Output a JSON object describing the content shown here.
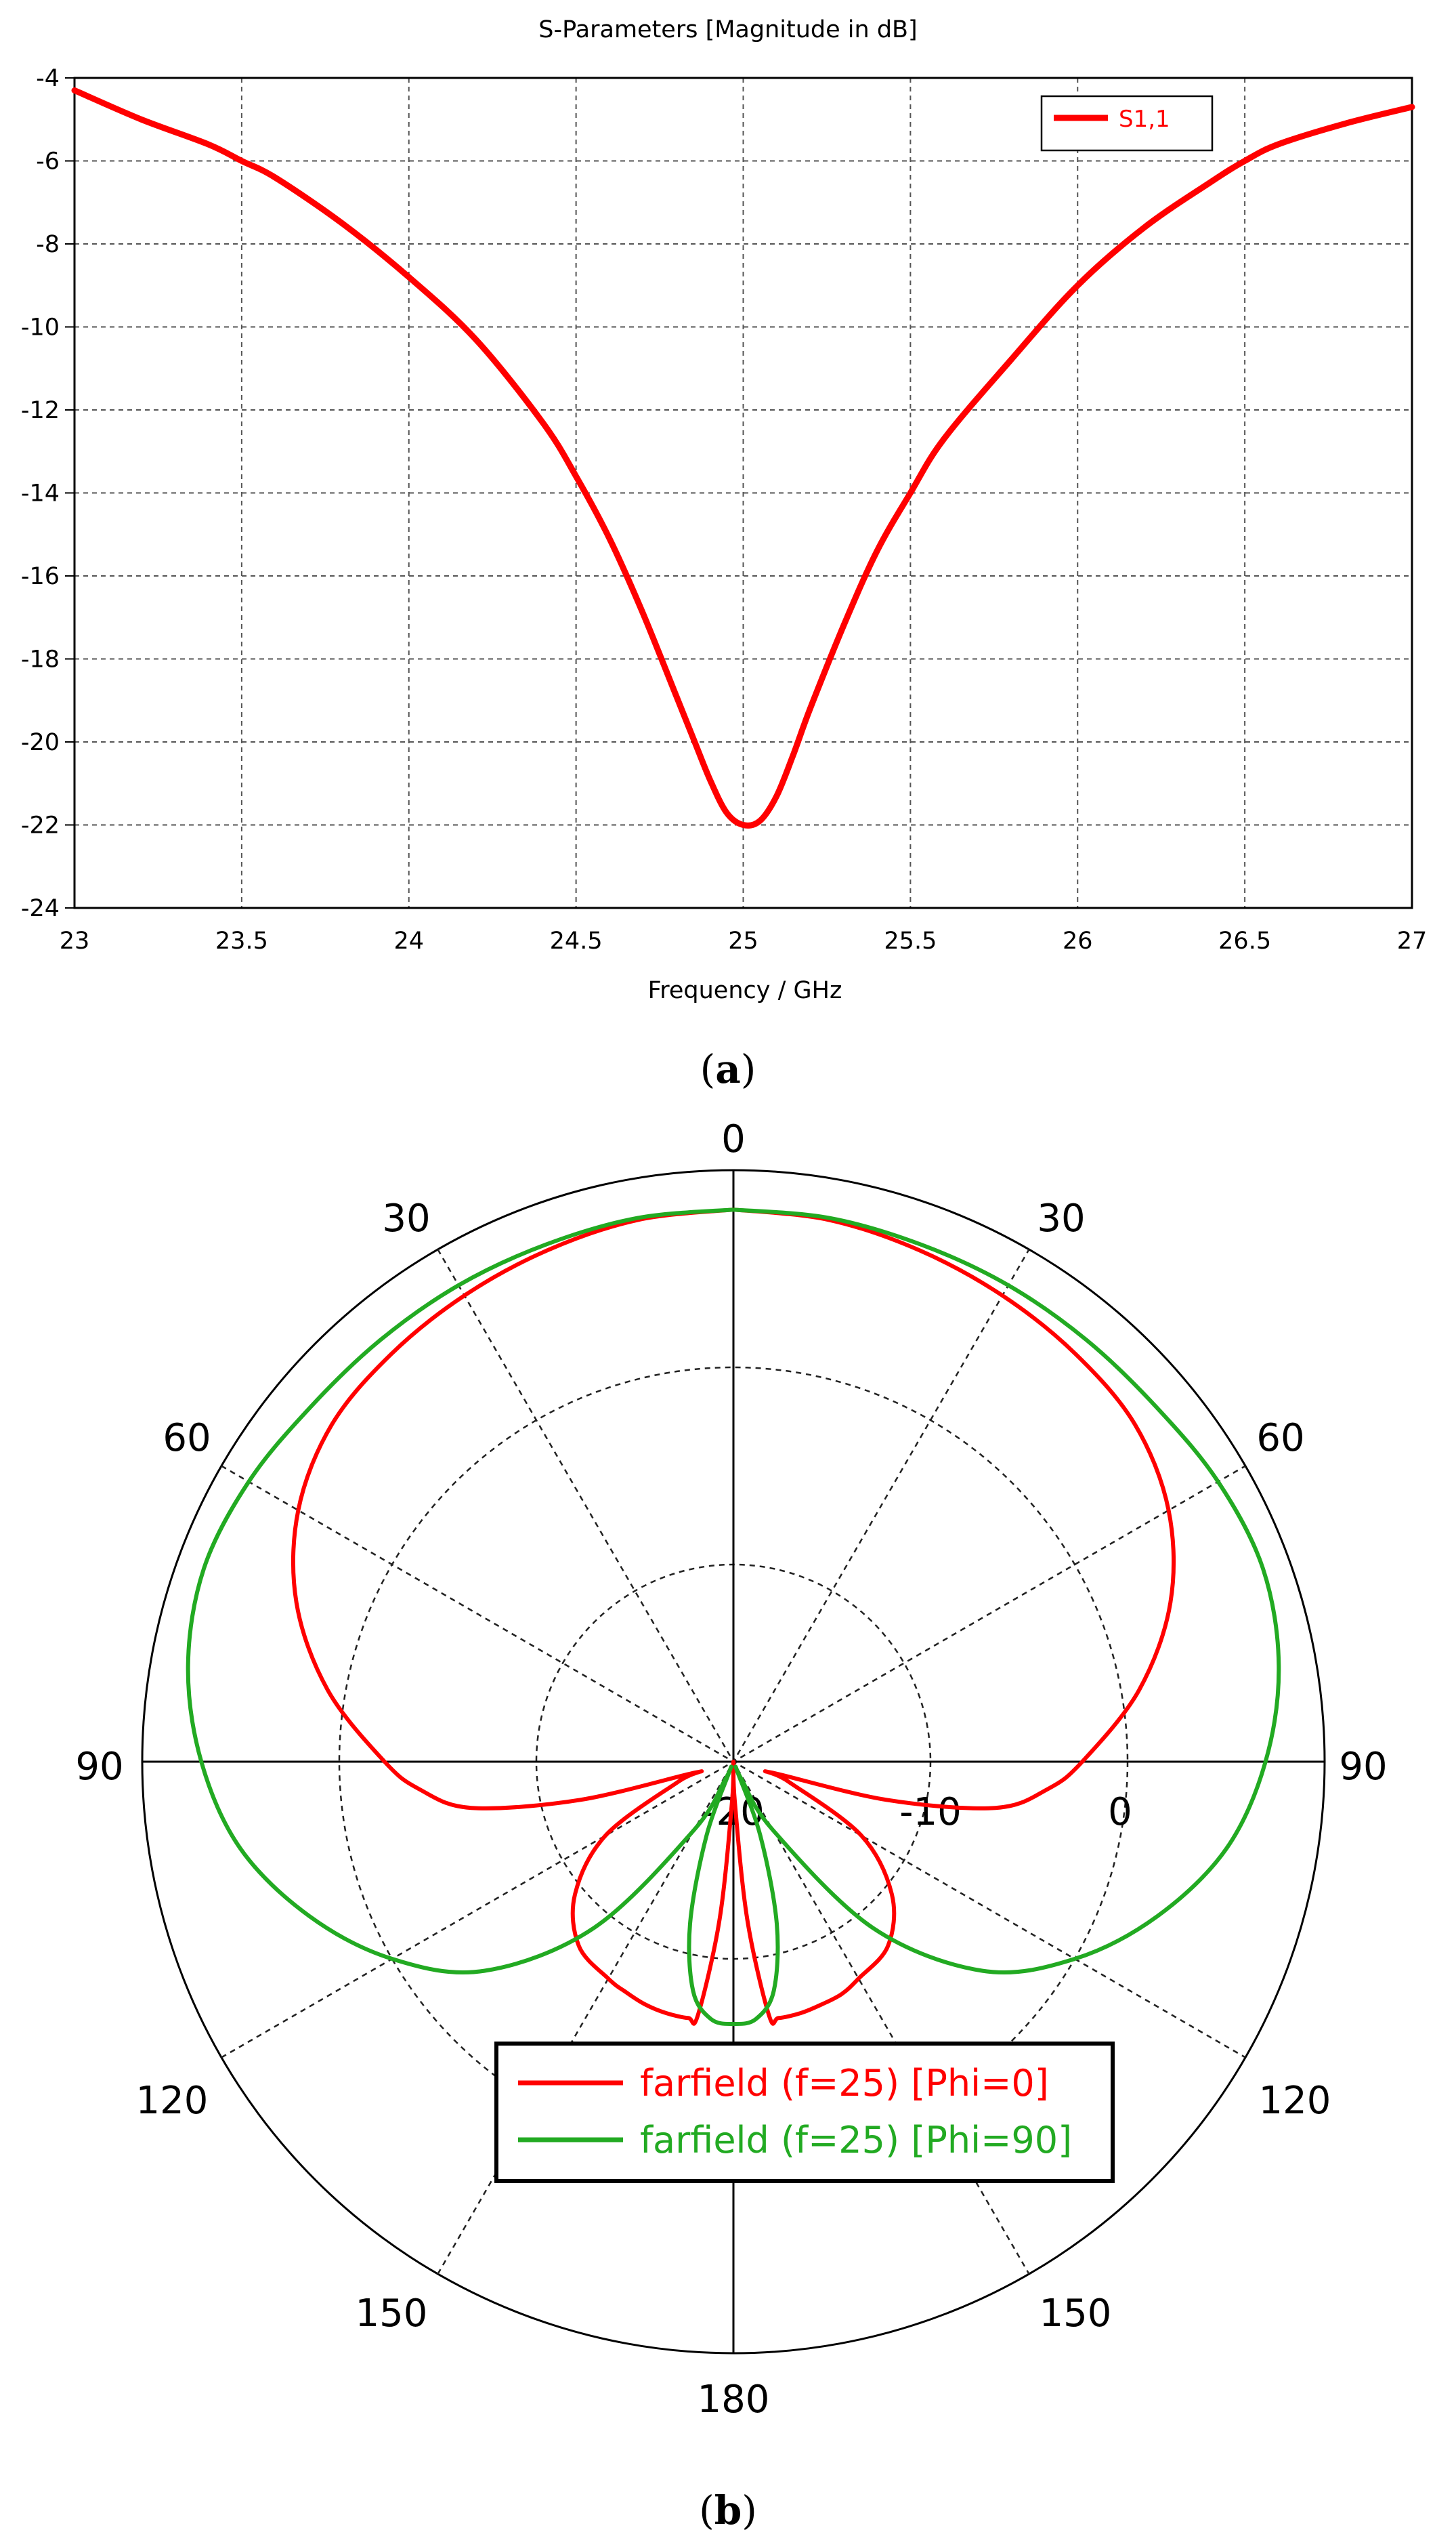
{
  "caption_a": {
    "open": "(",
    "letter": "a",
    "close": ")"
  },
  "caption_b": {
    "open": "(",
    "letter": "b",
    "close": ")"
  },
  "chart_data": [
    {
      "type": "line",
      "title": "S-Parameters [Magnitude in dB]",
      "xlabel": "Frequency / GHz",
      "ylabel": "",
      "xlim": [
        23,
        27
      ],
      "ylim": [
        -24,
        -4
      ],
      "x_ticks": [
        "23",
        "23.5",
        "24",
        "24.5",
        "25",
        "25.5",
        "26",
        "26.5",
        "27"
      ],
      "y_ticks": [
        "-4",
        "-6",
        "-8",
        "-10",
        "-12",
        "-14",
        "-16",
        "-18",
        "-20",
        "-22",
        "-24"
      ],
      "grid": true,
      "legend_position": "top-right",
      "series": [
        {
          "name": "S1,1",
          "color": "#ff0000",
          "x": [
            23.0,
            23.2,
            23.4,
            23.5,
            23.6,
            23.8,
            24.0,
            24.2,
            24.4,
            24.5,
            24.6,
            24.7,
            24.8,
            24.85,
            24.9,
            24.95,
            25.0,
            25.05,
            25.1,
            25.15,
            25.2,
            25.3,
            25.4,
            25.5,
            25.6,
            25.8,
            26.0,
            26.2,
            26.4,
            26.5,
            26.6,
            26.8,
            27.0
          ],
          "y": [
            -4.3,
            -5.0,
            -5.6,
            -6.0,
            -6.4,
            -7.5,
            -8.8,
            -10.3,
            -12.3,
            -13.6,
            -15.1,
            -16.9,
            -18.9,
            -19.9,
            -20.9,
            -21.7,
            -22.0,
            -21.9,
            -21.3,
            -20.3,
            -19.2,
            -17.2,
            -15.4,
            -14.0,
            -12.7,
            -10.8,
            -9.0,
            -7.6,
            -6.5,
            -6.0,
            -5.6,
            -5.1,
            -4.7
          ]
        }
      ]
    },
    {
      "type": "polar",
      "angle_labels": {
        "top": "0",
        "upper_left": "30",
        "upper_right": "30",
        "mid_left": "60",
        "mid_right": "60",
        "left": "90",
        "right": "90",
        "lower_left": "120",
        "lower_right": "120",
        "low_left": "150",
        "low_right": "150",
        "bottom": "180"
      },
      "radial_ticks": [
        "-20",
        "-10",
        "0"
      ],
      "radial_range": [
        -20,
        10
      ],
      "legend_position": "bottom-center",
      "series": [
        {
          "name": "farfield (f=25) [Phi=0]",
          "color": "#ff0000",
          "theta": [
            0,
            10,
            20,
            30,
            40,
            50,
            60,
            70,
            80,
            90,
            95,
            100,
            104,
            106,
            110,
            120,
            130,
            140,
            150,
            155,
            160,
            165,
            170,
            172,
            175,
            178,
            180,
            182,
            185,
            188,
            190,
            195,
            200,
            205,
            210,
            220,
            230,
            240,
            250,
            254,
            256,
            260,
            265,
            270,
            280,
            290,
            300,
            310,
            320,
            330,
            340,
            350,
            360
          ],
          "r": [
            8.0,
            7.9,
            7.6,
            7.3,
            7.0,
            6.6,
            5.5,
            3.6,
            0.9,
            -2.3,
            -4.0,
            -6.5,
            -12.0,
            -18.0,
            -17.0,
            -12.5,
            -9.5,
            -7.8,
            -7.3,
            -7.0,
            -6.9,
            -6.8,
            -6.8,
            -7.0,
            -12.0,
            -18.0,
            -20.0,
            -18.0,
            -12.0,
            -7.0,
            -6.8,
            -6.8,
            -6.9,
            -7.1,
            -7.3,
            -7.8,
            -9.5,
            -12.5,
            -17.0,
            -18.0,
            -12.0,
            -6.5,
            -4.0,
            -2.3,
            0.9,
            3.6,
            5.5,
            6.6,
            7.0,
            7.3,
            7.6,
            7.9,
            8.0
          ]
        },
        {
          "name": "farfield (f=25) [Phi=90]",
          "color": "#22aa22",
          "theta": [
            0,
            10,
            20,
            30,
            40,
            50,
            60,
            70,
            80,
            90,
            100,
            110,
            120,
            130,
            140,
            150,
            155,
            158,
            160,
            165,
            170,
            175,
            180,
            185,
            190,
            195,
            200,
            202,
            205,
            210,
            220,
            230,
            240,
            250,
            260,
            270,
            280,
            290,
            300,
            310,
            320,
            330,
            340,
            350,
            360
          ],
          "r": [
            8.0,
            8.0,
            7.9,
            7.9,
            7.9,
            8.0,
            8.4,
            8.6,
            8.1,
            7.0,
            5.4,
            2.9,
            0.0,
            -3.5,
            -9.0,
            -16.0,
            -19.0,
            -19.5,
            -16.0,
            -11.5,
            -8.2,
            -6.9,
            -6.7,
            -6.9,
            -8.2,
            -11.5,
            -16.0,
            -19.5,
            -19.0,
            -16.0,
            -9.0,
            -3.5,
            0.0,
            2.9,
            5.4,
            7.0,
            8.1,
            8.6,
            8.4,
            8.0,
            7.9,
            7.9,
            7.9,
            8.0,
            8.0
          ]
        }
      ]
    }
  ]
}
